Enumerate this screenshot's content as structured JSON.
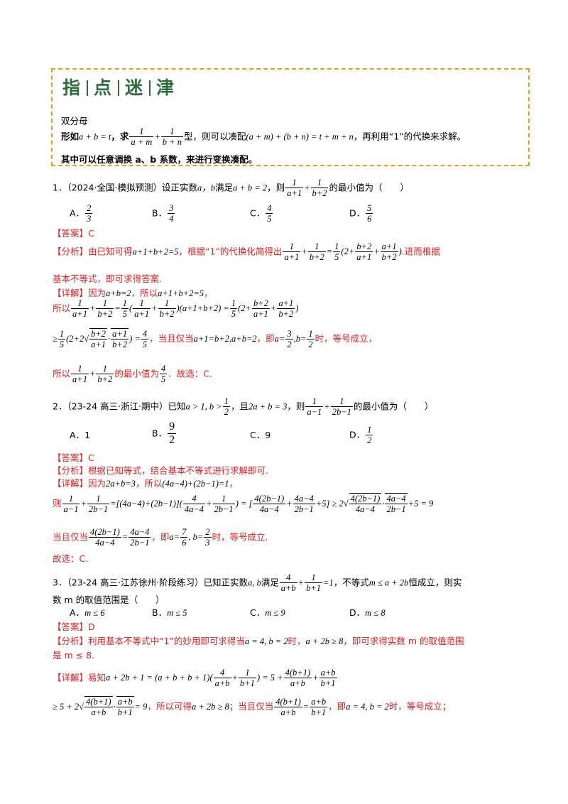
{
  "tip": {
    "title": [
      "指",
      "点",
      "迷",
      "津"
    ],
    "heading": "双分母",
    "line1_pre": "形如",
    "line1_cond": "a + b = t",
    "line1_ask": "，求",
    "line1_f1_num": "1",
    "line1_f1_den": "a + m",
    "line1_plus": "+",
    "line1_f2_num": "1",
    "line1_f2_den": "b + n",
    "line1_type": "型，则可以凑配",
    "line1_expr": "(a + m) + (b + n) = t + m + n",
    "line1_end": "，再利用“1”的代换来求解。",
    "line2": "其中可以任意调换 a、b 系数，来进行变换凑配。"
  },
  "q1": {
    "stem_pre": "1．（2024·全国·模拟预测）设正实数",
    "vars": "a，b",
    "stem_mid": "满足",
    "cond": "a + b = 2",
    "stem_then": "，则",
    "stem_end": "的最小值为（　　）",
    "options": [
      {
        "label": "A．",
        "num": "2",
        "den": "3"
      },
      {
        "label": "B．",
        "num": "3",
        "den": "4"
      },
      {
        "label": "C．",
        "num": "4",
        "den": "5"
      },
      {
        "label": "D．",
        "num": "5",
        "den": "6"
      }
    ],
    "answer": "【答案】C",
    "analysis_pre": "【分析】由已知可得",
    "analysis_eq": "a+1+b+2=5",
    "analysis_mid": "，根据“1”的代换化简得出",
    "analysis_end": ".进而根据",
    "analysis_line2": "基本不等式，即可求得答案.",
    "detail_pre": "【详解】因为",
    "detail_eq1": "a+b=2",
    "detail_mid": "，所以",
    "detail_eq2": "a+1+b+2=5",
    "detail_end": "，",
    "so": "所以",
    "ineq_tail": "，当且仅当",
    "cond_eq": "a+1=b+2,a+b=2",
    "ie": "，即",
    "when": "时，等号成立，",
    "conclude_pre": "所以",
    "conclude_mid": "的最小值为",
    "conclude_end": "．故选：C."
  },
  "q2": {
    "stem_pre": "2．（23-24 高三·浙江·期中）已知",
    "cond1": "a > 1, b >",
    "stem_and": "，且",
    "cond2": "2a + b = 3",
    "stem_then": "，则",
    "stem_end": "的最小值为（　　）",
    "options": [
      {
        "label": "A．",
        "text": "1"
      },
      {
        "label": "B．",
        "num": "9",
        "den": "2"
      },
      {
        "label": "C．",
        "text": "9"
      },
      {
        "label": "D．",
        "num": "1",
        "den": "2"
      }
    ],
    "answer": "【答案】C",
    "analysis": "【分析】根据已知等式，结合基本不等式进行求解即可.",
    "detail_pre": "【详解】因为",
    "detail_eq1": "2a+b=3",
    "detail_mid": "，所以",
    "detail_eq2": "(4a−4)+(2b−1)=1",
    "detail_end": "，",
    "then": "则",
    "eq_result": "+5 = 9",
    "when_pre": "当且仅当",
    "ie": "，即",
    "when": "时，等号成立.",
    "choose": "故选：C."
  },
  "q3": {
    "stem_pre": "3．（23-24 高三·江苏徐州·阶段练习）已知正实数",
    "vars": "a, b",
    "stem_mid": "满足",
    "stem_ineq": "，不等式",
    "ineq": "m ≤ a + 2b",
    "stem_end": "恒成立，则实",
    "stem_line2": "数 m 的取值范围是（　　）",
    "options": [
      {
        "label": "A．",
        "text": "m ≤ 6"
      },
      {
        "label": "B．",
        "text": "m ≤ 5"
      },
      {
        "label": "C．",
        "text": "m ≤ 9"
      },
      {
        "label": "D．",
        "text": "m ≤ 8"
      }
    ],
    "answer": "【答案】D",
    "analysis_pre": "【分析】利用基本不等式中“1”的妙用即可求得当",
    "analysis_eq": "a = 4, b = 2",
    "analysis_mid": "时，",
    "analysis_ineq": "a + 2b ≥ 8",
    "analysis_end": "，即可求得实数 m 的取值范围",
    "analysis_line2": "是 m ≤ 8.",
    "detail_pre": "【详解】易知",
    "detail_lhs": "a + 2b + 1 = (a + b + b + 1)",
    "ge_pre": "≥ 5 + 2",
    "ge_post": "= 9",
    "can_get": "，所以可得",
    "result": "a + 2b ≥ 8",
    "only_when": "；当且仅当",
    "ie": "，即",
    "final_eq": "a = 4, b = 2",
    "when": "时，等号成立；"
  }
}
